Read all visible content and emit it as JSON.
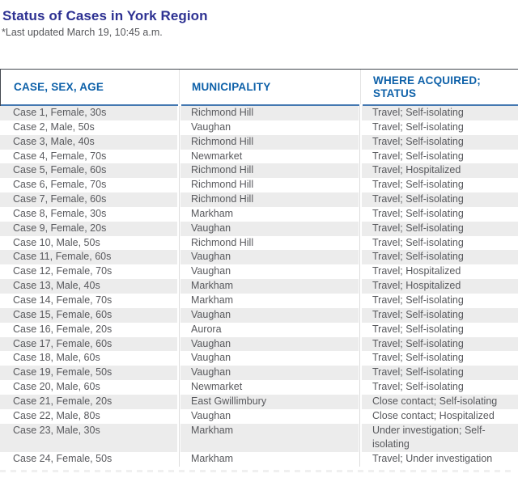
{
  "colors": {
    "title-navy": "#2d3192",
    "subtitle-gray": "#55565a",
    "header-blue": "#0e61a9",
    "underline-blue": "#4478b1",
    "border-dark": "#43474f",
    "text-gray": "#58595d",
    "stripe": "#ececec",
    "column-line": "#dcdcdc"
  },
  "page": {
    "title": "Status of Cases in York Region",
    "subtitle": "*Last updated March 19, 10:45 a.m."
  },
  "table": {
    "columns": [
      "CASE, SEX, AGE",
      "MUNICIPALITY",
      "WHERE ACQUIRED; STATUS"
    ],
    "rows": [
      {
        "case": "Case 1, Female, 30s",
        "municipality": "Richmond Hill",
        "status": "Travel; Self-isolating"
      },
      {
        "case": "Case 2, Male, 50s",
        "municipality": "Vaughan",
        "status": "Travel; Self-isolating"
      },
      {
        "case": "Case 3, Male, 40s",
        "municipality": "Richmond Hill",
        "status": "Travel; Self-isolating"
      },
      {
        "case": "Case 4, Female, 70s",
        "municipality": "Newmarket",
        "status": "Travel; Self-isolating"
      },
      {
        "case": "Case 5, Female, 60s",
        "municipality": "Richmond Hill",
        "status": "Travel; Hospitalized"
      },
      {
        "case": "Case 6, Female, 70s",
        "municipality": "Richmond Hill",
        "status": "Travel; Self-isolating"
      },
      {
        "case": "Case 7, Female, 60s",
        "municipality": "Richmond Hill",
        "status": "Travel; Self-isolating"
      },
      {
        "case": "Case 8, Female, 30s",
        "municipality": "Markham",
        "status": "Travel; Self-isolating"
      },
      {
        "case": "Case 9, Female, 20s",
        "municipality": "Vaughan",
        "status": "Travel; Self-isolating"
      },
      {
        "case": "Case 10, Male, 50s",
        "municipality": "Richmond Hill",
        "status": "Travel; Self-isolating"
      },
      {
        "case": "Case 11, Female, 60s",
        "municipality": "Vaughan",
        "status": "Travel; Self-isolating"
      },
      {
        "case": "Case 12, Female, 70s",
        "municipality": "Vaughan",
        "status": "Travel; Hospitalized"
      },
      {
        "case": "Case 13, Male, 40s",
        "municipality": "Markham",
        "status": "Travel; Hospitalized"
      },
      {
        "case": "Case 14, Female, 70s",
        "municipality": "Markham",
        "status": "Travel; Self-isolating"
      },
      {
        "case": "Case 15, Female, 60s",
        "municipality": "Vaughan",
        "status": "Travel; Self-isolating"
      },
      {
        "case": "Case 16, Female, 20s",
        "municipality": "Aurora",
        "status": "Travel; Self-isolating"
      },
      {
        "case": "Case 17, Female, 60s",
        "municipality": "Vaughan",
        "status": "Travel; Self-isolating"
      },
      {
        "case": "Case 18, Male, 60s",
        "municipality": "Vaughan",
        "status": "Travel; Self-isolating"
      },
      {
        "case": "Case 19, Female, 50s",
        "municipality": "Vaughan",
        "status": "Travel; Self-isolating"
      },
      {
        "case": "Case 20, Male, 60s",
        "municipality": "Newmarket",
        "status": "Travel; Self-isolating"
      },
      {
        "case": "Case 21, Female, 20s",
        "municipality": "East Gwillimbury",
        "status": "Close contact; Self-isolating"
      },
      {
        "case": "Case 22, Male, 80s",
        "municipality": "Vaughan",
        "status": "Close contact; Hospitalized"
      },
      {
        "case": "Case 23, Male, 30s",
        "municipality": "Markham",
        "status": "Under investigation; Self-isolating"
      },
      {
        "case": "Case 24, Female, 50s",
        "municipality": "Markham",
        "status": "Travel; Under investigation"
      }
    ]
  }
}
